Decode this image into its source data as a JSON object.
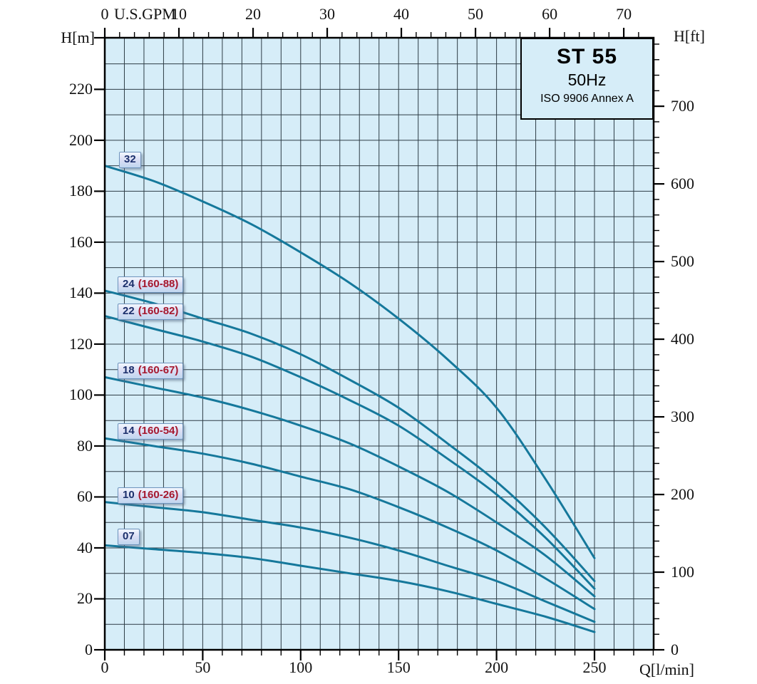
{
  "title_box": {
    "model": "ST 55",
    "frequency": "50Hz",
    "standard": "ISO 9906 Annex A"
  },
  "axis_titles": {
    "left": "H[m]",
    "right": "H[ft]",
    "bottom": "Q[l/min]",
    "top": "U.S.GPM"
  },
  "colors": {
    "plot_bg": "#d6edf8",
    "grid": "#2e3d46",
    "curve": "#15789b",
    "border": "#000000",
    "tick": "#000000",
    "label_number": "#1b2f6b",
    "label_code": "#a5182e"
  },
  "chart_data": {
    "type": "line",
    "title": "ST 55 50Hz pump performance curves (ISO 9906 Annex A)",
    "xlabel": "Q[l/min]",
    "xlabel_top": "U.S.GPM",
    "ylabel_left": "H[m]",
    "ylabel_right": "H[ft]",
    "xlim_lmin": [
      0,
      280
    ],
    "ylim_m": [
      0,
      240
    ],
    "grid": "on",
    "grid_step_lmin": 10,
    "grid_step_m": 10,
    "x_lmin": [
      0,
      25,
      50,
      75,
      100,
      125,
      150,
      175,
      200,
      225,
      250
    ],
    "series": [
      {
        "name": "32",
        "code": "",
        "label_h": 192.4,
        "values": [
          190,
          184,
          176,
          167,
          156,
          144,
          130,
          114,
          95,
          67,
          36
        ]
      },
      {
        "name": "24",
        "code": "(160-88)",
        "label_h": 143.5,
        "values": [
          141,
          136,
          130,
          124,
          116,
          106,
          95,
          81,
          66,
          48,
          27
        ]
      },
      {
        "name": "22",
        "code": "(160-82)",
        "label_h": 132.9,
        "values": [
          131,
          126,
          121,
          115,
          107,
          98,
          88,
          75,
          61,
          44,
          24
        ]
      },
      {
        "name": "18",
        "code": "(160-67)",
        "label_h": 109.6,
        "values": [
          107,
          103,
          99,
          94,
          88,
          81,
          72,
          62,
          50,
          37,
          21
        ]
      },
      {
        "name": "14",
        "code": "(160-54)",
        "label_h": 85.9,
        "values": [
          83,
          80,
          77,
          73,
          68,
          63,
          56,
          48,
          39,
          28,
          16
        ]
      },
      {
        "name": "10",
        "code": "(160-26)",
        "label_h": 60.7,
        "values": [
          58,
          56,
          54,
          51,
          48,
          44,
          39,
          33,
          27,
          19,
          11
        ]
      },
      {
        "name": "07",
        "code": "",
        "label_h": 44.5,
        "values": [
          41,
          39.5,
          38,
          36,
          33,
          30,
          27,
          23,
          18,
          13,
          7
        ]
      }
    ],
    "bottom_axis": {
      "labels": [
        0,
        50,
        100,
        150,
        200,
        250
      ],
      "major_step": 50,
      "minor_step": 10,
      "minor_max": 280
    },
    "left_axis": {
      "labels": [
        0,
        20,
        40,
        60,
        80,
        100,
        120,
        140,
        160,
        180,
        200,
        220
      ],
      "major_step": 20
    },
    "right_axis": {
      "labels": [
        0,
        100,
        200,
        300,
        400,
        500,
        600,
        700
      ],
      "major_step": 100,
      "minor_step": 20,
      "minor_max": 780,
      "unit": "ft"
    },
    "top_axis": {
      "labels": [
        0,
        10,
        20,
        30,
        40,
        50,
        60,
        70
      ],
      "major_step": 10,
      "minor_step": 2,
      "minor_max": 74,
      "unit": "US GPM",
      "lmin_per_gpm": 3.785
    }
  }
}
